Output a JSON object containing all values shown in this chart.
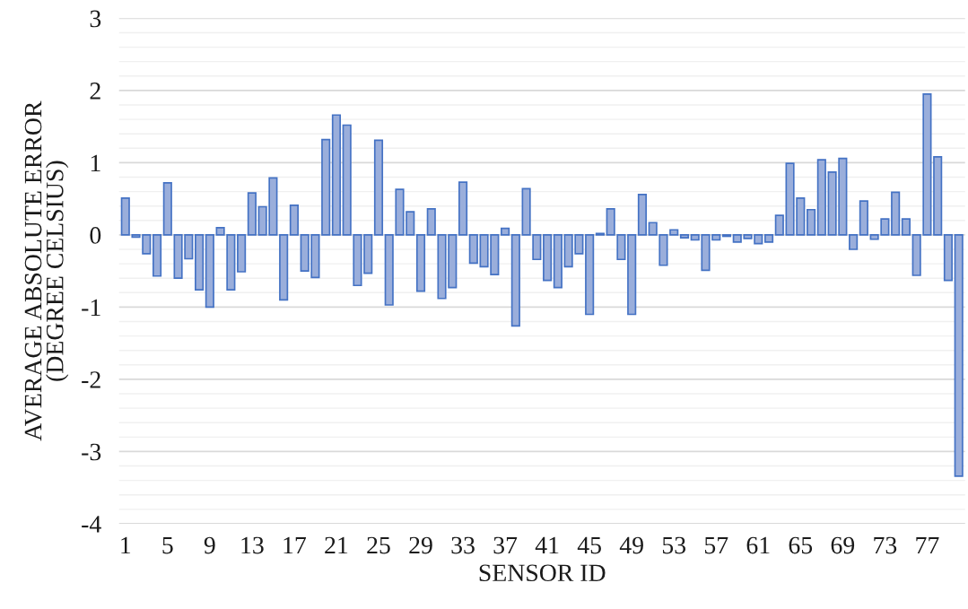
{
  "chart_data": {
    "type": "bar",
    "xlabel": "SENSOR ID",
    "ylabel": "AVERAGE ABSOLUTE ERROR\n(DEGREE CELSIUS)",
    "categories": [
      "1",
      null,
      null,
      null,
      "5",
      null,
      null,
      null,
      "9",
      null,
      null,
      null,
      "13",
      null,
      null,
      null,
      "17",
      null,
      null,
      null,
      "21",
      null,
      null,
      null,
      "25",
      null,
      null,
      null,
      "29",
      null,
      null,
      null,
      "33",
      null,
      null,
      null,
      "37",
      null,
      null,
      null,
      "41",
      null,
      null,
      null,
      "45",
      null,
      null,
      null,
      "49",
      null,
      null,
      null,
      "53",
      null,
      null,
      null,
      "57",
      null,
      null,
      null,
      "61",
      null,
      null,
      null,
      "65",
      null,
      null,
      null,
      "69",
      null,
      null,
      null,
      "73",
      null,
      null,
      null,
      "77",
      null,
      null,
      null
    ],
    "values": [
      0.51,
      -0.03,
      -0.26,
      -0.57,
      0.72,
      -0.6,
      -0.33,
      -0.76,
      -1.0,
      0.1,
      -0.76,
      -0.51,
      0.58,
      0.39,
      0.79,
      -0.9,
      0.41,
      -0.5,
      -0.59,
      1.32,
      1.66,
      1.52,
      -0.7,
      -0.53,
      1.31,
      -0.97,
      0.63,
      0.32,
      -0.78,
      0.36,
      -0.88,
      -0.73,
      0.73,
      -0.39,
      -0.44,
      -0.55,
      0.09,
      -1.26,
      0.64,
      -0.34,
      -0.63,
      -0.73,
      -0.44,
      -0.26,
      -1.1,
      0.02,
      0.36,
      -0.34,
      -1.1,
      0.56,
      0.17,
      -0.42,
      0.07,
      -0.04,
      -0.07,
      -0.49,
      -0.07,
      -0.02,
      -0.1,
      -0.05,
      -0.12,
      -0.1,
      0.27,
      0.99,
      0.51,
      0.35,
      1.04,
      0.87,
      1.06,
      -0.2,
      0.47,
      -0.06,
      0.22,
      0.59,
      0.22,
      -0.56,
      1.95,
      1.08,
      -0.63,
      -3.34
    ],
    "color": "#9aaedb",
    "ylim": [
      -4,
      3
    ],
    "yticks": [
      -4,
      -3,
      -2,
      -1,
      0,
      1,
      2,
      3
    ],
    "grid": "y"
  }
}
